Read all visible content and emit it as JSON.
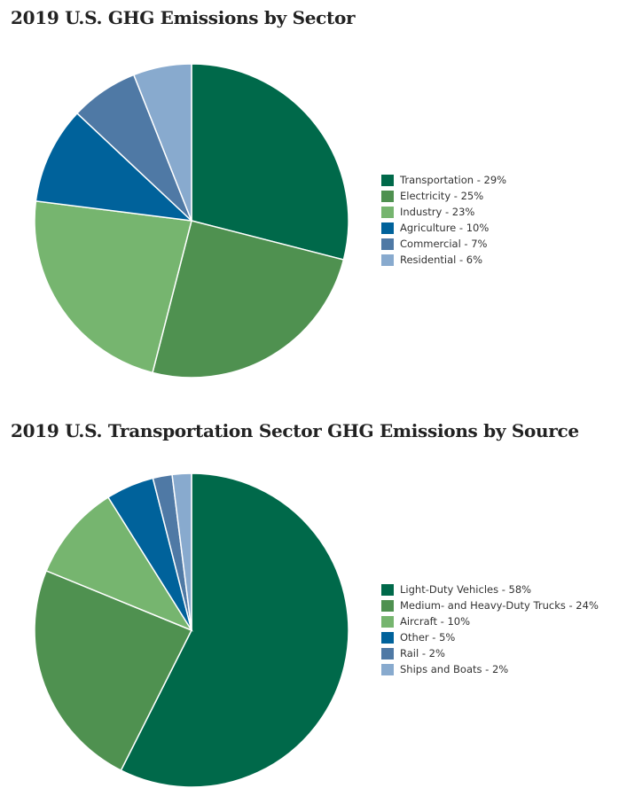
{
  "chart_data": [
    {
      "type": "pie",
      "title": "2019 U.S. GHG Emissions by Sector",
      "legend_position": "right",
      "slices": [
        {
          "label": "Transportation - 29%",
          "value": 29,
          "color": "#00694a"
        },
        {
          "label": "Electricity - 25%",
          "value": 25,
          "color": "#4f9150"
        },
        {
          "label": "Industry - 23%",
          "value": 23,
          "color": "#76b56f"
        },
        {
          "label": "Agriculture - 10%",
          "value": 10,
          "color": "#00629b"
        },
        {
          "label": "Commercial - 7%",
          "value": 7,
          "color": "#4f79a5"
        },
        {
          "label": "Residential - 6%",
          "value": 6,
          "color": "#88aace"
        }
      ]
    },
    {
      "type": "pie",
      "title": "2019 U.S. Transportation Sector GHG Emissions by Source",
      "legend_position": "right",
      "slices": [
        {
          "label": "Light-Duty Vehicles - 58%",
          "value": 58,
          "color": "#00694a"
        },
        {
          "label": "Medium- and Heavy-Duty Trucks - 24%",
          "value": 24,
          "color": "#4f9150"
        },
        {
          "label": "Aircraft - 10%",
          "value": 10,
          "color": "#76b56f"
        },
        {
          "label": "Other - 5%",
          "value": 5,
          "color": "#00629b"
        },
        {
          "label": "Rail - 2%",
          "value": 2,
          "color": "#4f79a5"
        },
        {
          "label": "Ships and Boats - 2%",
          "value": 2,
          "color": "#88aace"
        }
      ]
    }
  ]
}
